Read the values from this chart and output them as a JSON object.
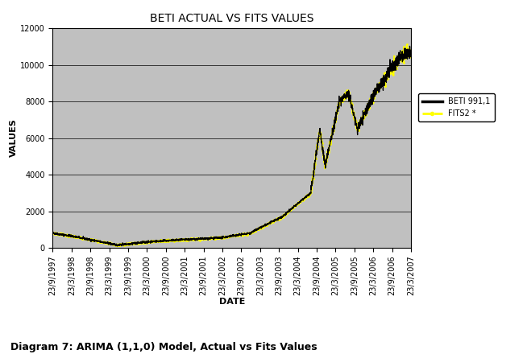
{
  "title": "BETI ACTUAL VS FITS VALUES",
  "xlabel": "DATE",
  "ylabel": "VALUES",
  "caption": "Diagram 7: ARIMA (1,1,0) Model, Actual vs Fits Values",
  "legend_labels": [
    "BETI 991,1",
    "FITS2 *"
  ],
  "x_tick_labels": [
    "23/9/1997",
    "23/3/1998",
    "23/9/1998",
    "23/3/1999",
    "23/9/1999",
    "23/3/2000",
    "23/9/2000",
    "23/3/2001",
    "23/9/2001",
    "23/3/2002",
    "23/9/2002",
    "23/3/2003",
    "23/9/2003",
    "23/3/2004",
    "23/9/2004",
    "23/3/2005",
    "23/9/2005",
    "23/3/2006",
    "23/9/2006",
    "23/3/2007"
  ],
  "ylim": [
    0,
    12000
  ],
  "yticks": [
    0,
    2000,
    4000,
    6000,
    8000,
    10000,
    12000
  ],
  "plot_bg_color": "#C0C0C0",
  "fig_bg_color": "#FFFFFF",
  "actual_color": "#000000",
  "fits_color": "#FFFF00",
  "title_fontsize": 10,
  "axis_label_fontsize": 8,
  "tick_fontsize": 7,
  "caption_fontsize": 9
}
